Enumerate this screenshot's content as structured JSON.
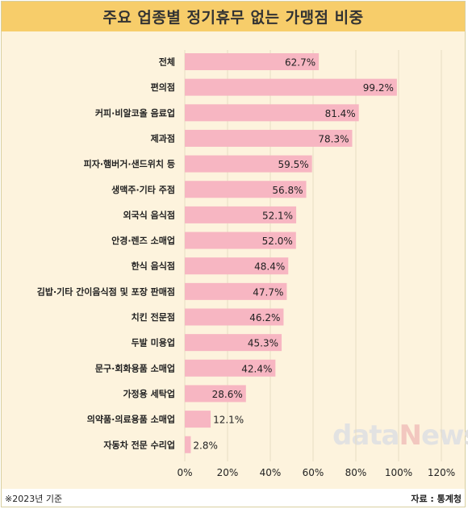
{
  "header": {
    "title": "주요 업종별 정기휴무 없는 가맹점 비중"
  },
  "footer": {
    "note": "※2023년 기준",
    "source": "자료 : 통계청"
  },
  "watermark": {
    "part1": "data",
    "part2": "N",
    "part3": "ews"
  },
  "colors": {
    "bar": "#f7b6c2",
    "title_bg": "#f7cd6a",
    "plot_bg": "#fdf3dd",
    "grid": "#e6dcc2"
  },
  "chart_data": {
    "type": "bar",
    "orientation": "horizontal",
    "title": "주요 업종별 정기휴무 없는 가맹점 비중",
    "xlabel": "",
    "ylabel": "",
    "xlim": [
      0,
      120
    ],
    "x_ticks": [
      "0%",
      "20%",
      "40%",
      "60%",
      "80%",
      "100%",
      "120%"
    ],
    "grid": true,
    "categories": [
      "전체",
      "편의점",
      "커피·비알코올 음료업",
      "제과점",
      "피자·햄버거·샌드위치 등",
      "생맥주·기타 주점",
      "외국식 음식점",
      "안경·렌즈 소매업",
      "한식 음식점",
      "김밥·기타 간이음식점 및 포장 판매점",
      "치킨 전문점",
      "두발 미용업",
      "문구·회화용품 소매업",
      "가정용 세탁업",
      "의약품·의료용품 소매업",
      "자동차 전문 수리업"
    ],
    "values": [
      62.7,
      99.2,
      81.4,
      78.3,
      59.5,
      56.8,
      52.1,
      52.0,
      48.4,
      47.7,
      46.2,
      45.3,
      42.4,
      28.6,
      12.1,
      2.8
    ],
    "value_labels": [
      "62.7%",
      "99.2%",
      "81.4%",
      "78.3%",
      "59.5%",
      "56.8%",
      "52.1%",
      "52.0%",
      "48.4%",
      "47.7%",
      "46.2%",
      "45.3%",
      "42.4%",
      "28.6%",
      "12.1%",
      "2.8%"
    ]
  }
}
